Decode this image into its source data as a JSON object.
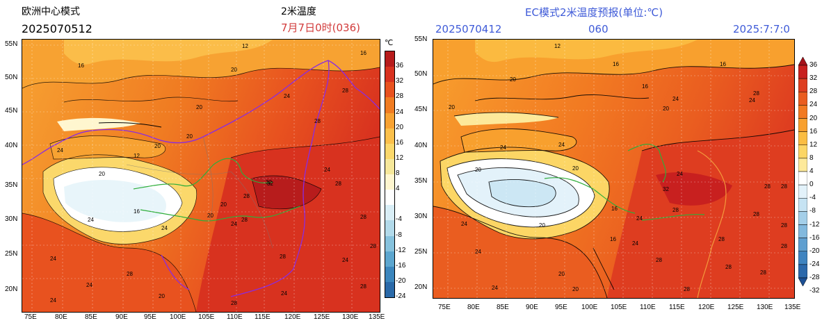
{
  "left": {
    "title": "欧洲中心模式",
    "init": "2025070512",
    "var": "2米温度",
    "valid": "7月7日0时(036)",
    "unit": "℃",
    "lat_labels": [
      "55N",
      "50N",
      "45N",
      "40N",
      "35N",
      "30N",
      "25N",
      "20N"
    ],
    "lon_labels": [
      "75E",
      "80E",
      "85E",
      "90E",
      "95E",
      "100E",
      "105E",
      "110E",
      "115E",
      "120E",
      "125E",
      "130E",
      "135E"
    ],
    "colorbar_labels": [
      "36",
      "32",
      "28",
      "24",
      "20",
      "16",
      "12",
      "8",
      "4",
      "-4",
      "-8",
      "-12",
      "-16",
      "-20",
      "-24"
    ],
    "colorbar_colors": [
      "#b71c1c",
      "#d8321f",
      "#e8521f",
      "#f07c22",
      "#f7a232",
      "#fbc04b",
      "#fbd86b",
      "#f6e89a",
      "#fff6cf",
      "#ffffff",
      "#d9eef6",
      "#b2daea",
      "#86c2dd",
      "#5ca6cf",
      "#3b86bd",
      "#2a69a8"
    ]
  },
  "right": {
    "title": "EC模式2米温度预报(单位:℃)",
    "init": "2025070412",
    "step": "060",
    "valid": "2025:7:7:0",
    "lat_labels": [
      "55N",
      "50N",
      "45N",
      "40N",
      "35N",
      "30N",
      "25N",
      "20N"
    ],
    "lon_labels": [
      "75E",
      "80E",
      "85E",
      "90E",
      "95E",
      "100E",
      "105E",
      "110E",
      "115E",
      "120E",
      "125E",
      "130E",
      "135E"
    ],
    "colorbar_labels": [
      "36",
      "32",
      "28",
      "24",
      "20",
      "16",
      "12",
      "8",
      "4",
      "0",
      "-4",
      "-8",
      "-12",
      "-16",
      "-20",
      "-24",
      "-28",
      "-32"
    ],
    "colorbar_colors": [
      "#a5121a",
      "#c8201f",
      "#de3d20",
      "#ea5d20",
      "#f27a22",
      "#f8a02e",
      "#fbbd42",
      "#fcd665",
      "#fde99a",
      "#ffffff",
      "#e3f2fa",
      "#c6e3f3",
      "#a4cfe9",
      "#82b9de",
      "#5f9fd0",
      "#3f84c0",
      "#2c69ab",
      "#1d5094"
    ]
  },
  "field_labels_left": [
    "12",
    "16",
    "20",
    "24",
    "28",
    "32",
    "20",
    "16",
    "24",
    "28",
    "20",
    "24",
    "28",
    "24",
    "28",
    "24",
    "28",
    "28",
    "20",
    "16",
    "12",
    "24",
    "20",
    "20",
    "24",
    "28",
    "32",
    "28",
    "24",
    "28",
    "28",
    "24",
    "20",
    "24",
    "20",
    "24",
    "28"
  ],
  "field_labels_right": [
    "16",
    "16",
    "12",
    "16",
    "20",
    "24",
    "28",
    "24",
    "28",
    "24",
    "24",
    "28",
    "32",
    "28",
    "28",
    "28",
    "24",
    "24",
    "20",
    "20",
    "24",
    "28",
    "28",
    "20",
    "20",
    "16",
    "20",
    "24",
    "28",
    "28",
    "24",
    "28",
    "20",
    "24",
    "28",
    "20",
    "16"
  ]
}
